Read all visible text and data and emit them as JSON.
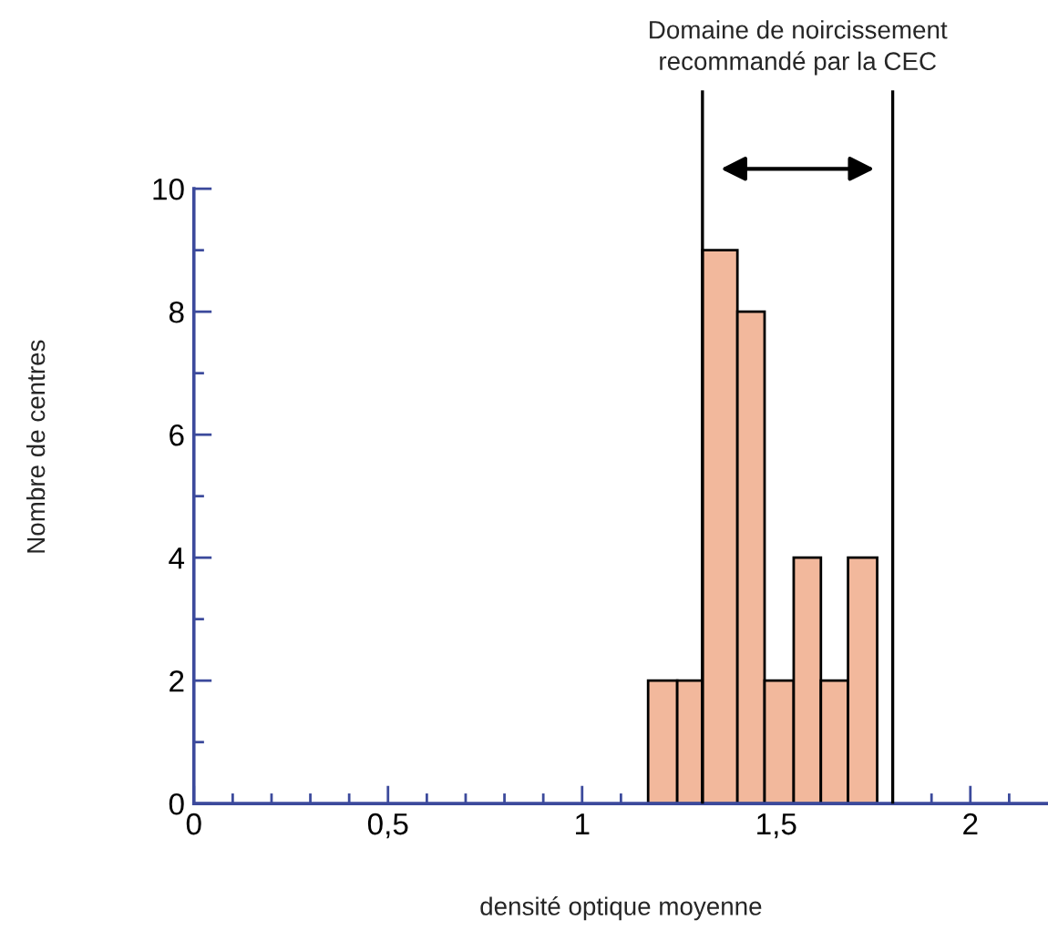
{
  "chart_data": {
    "type": "histogram",
    "xlabel": "densité optique moyenne",
    "ylabel": "Nombre de centres",
    "annotations": [
      "Domaine de noircissement\nrecommandé par la CEC"
    ],
    "bins": [
      1.17,
      1.245,
      1.31,
      1.4,
      1.47,
      1.545,
      1.615,
      1.685,
      1.76
    ],
    "values": [
      2,
      2,
      9,
      8,
      2,
      4,
      2,
      4
    ],
    "color": "#f2b89c",
    "xlim": [
      0,
      2.2
    ],
    "ylim": [
      0,
      11.6
    ],
    "xticks": [
      0,
      {
        "value": 0.1,
        "label": null
      },
      {
        "value": 0.2,
        "label": null
      },
      {
        "value": 0.3,
        "label": null
      },
      {
        "value": 0.4,
        "label": null
      },
      {
        "value": 0.5,
        "label": "0,5"
      },
      {
        "value": 0.6,
        "label": null
      },
      {
        "value": 0.7,
        "label": null
      },
      {
        "value": 0.8,
        "label": null
      },
      {
        "value": 0.9,
        "label": null
      },
      1,
      {
        "value": 1.1,
        "label": null
      },
      {
        "value": 1.2,
        "label": null
      },
      {
        "value": 1.3,
        "label": null
      },
      {
        "value": 1.4,
        "label": null
      },
      {
        "value": 1.5,
        "label": "1,5"
      },
      {
        "value": 1.6,
        "label": null
      },
      {
        "value": 1.7,
        "label": null
      },
      {
        "value": 1.8,
        "label": null
      },
      {
        "value": 1.9,
        "label": null
      },
      2,
      {
        "value": 2.1,
        "label": null
      }
    ],
    "yticks": [
      0,
      {
        "value": 1,
        "label": null
      },
      2,
      {
        "value": 3,
        "label": null
      },
      4,
      {
        "value": 5,
        "label": null
      },
      6,
      {
        "value": 7,
        "label": null
      },
      8,
      {
        "value": 9,
        "label": null
      },
      10
    ],
    "ref_lines": [
      {
        "axis": "x",
        "value": 1.31,
        "color": "#000000"
      },
      {
        "axis": "x",
        "value": 1.8,
        "color": "#000000"
      }
    ],
    "grid": false
  }
}
